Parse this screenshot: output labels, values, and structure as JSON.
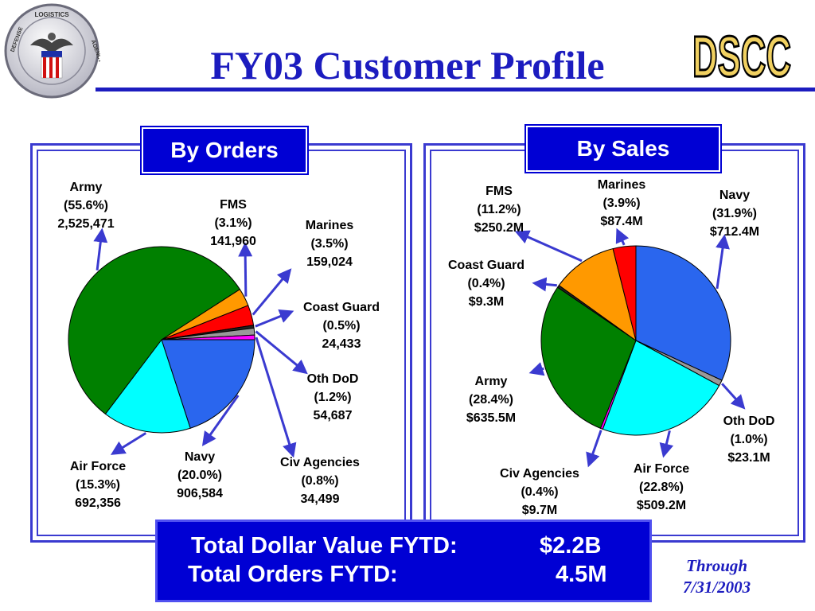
{
  "title": "FY03  Customer  Profile",
  "logo_text": {
    "top": "LOGISTICS",
    "left": "DEFENSE",
    "right": "AGENCY"
  },
  "brand": "DSCC",
  "colors": {
    "title": "#1c1cbf",
    "panel_border": "#3a3ad0",
    "box_fill": "#0000d4"
  },
  "chart_data": [
    {
      "type": "pie",
      "title": "By Orders",
      "slices": [
        {
          "name": "Navy",
          "percent": 20.0,
          "percent_label": "(20.0%)",
          "value_label": "906,584",
          "color": "#2a66ee"
        },
        {
          "name": "Air  Force",
          "percent": 15.3,
          "percent_label": "(15.3%)",
          "value_label": "692,356",
          "color": "#00ffff"
        },
        {
          "name": "Army",
          "percent": 55.6,
          "percent_label": "(55.6%)",
          "value_label": "2,525,471",
          "color": "#008000"
        },
        {
          "name": "FMS",
          "percent": 3.1,
          "percent_label": "(3.1%)",
          "value_label": "141,960",
          "color": "#ff9900"
        },
        {
          "name": "Marines",
          "percent": 3.5,
          "percent_label": "(3.5%)",
          "value_label": "159,024",
          "color": "#ff0000"
        },
        {
          "name": "Coast Guard",
          "percent": 0.5,
          "percent_label": "(0.5%)",
          "value_label": "24,433",
          "color": "#222222"
        },
        {
          "name": "Oth DoD",
          "percent": 1.2,
          "percent_label": "(1.2%)",
          "value_label": "54,687",
          "color": "#999999"
        },
        {
          "name": "Civ  Agencies",
          "percent": 0.8,
          "percent_label": "(0.8%)",
          "value_label": "34,499",
          "color": "#ff00ff"
        }
      ]
    },
    {
      "type": "pie",
      "title": "By Sales",
      "slices": [
        {
          "name": "Navy",
          "percent": 31.9,
          "percent_label": "(31.9%)",
          "value_label": "$712.4M",
          "color": "#2a66ee"
        },
        {
          "name": "Oth DoD",
          "percent": 1.0,
          "percent_label": "(1.0%)",
          "value_label": "$23.1M",
          "color": "#999999"
        },
        {
          "name": "Air  Force",
          "percent": 22.8,
          "percent_label": "(22.8%)",
          "value_label": "$509.2M",
          "color": "#00ffff"
        },
        {
          "name": "Civ  Agencies",
          "percent": 0.4,
          "percent_label": "(0.4%)",
          "value_label": "$9.7M",
          "color": "#ff00ff"
        },
        {
          "name": "Army",
          "percent": 28.4,
          "percent_label": "(28.4%)",
          "value_label": "$635.5M",
          "color": "#008000"
        },
        {
          "name": "Coast Guard",
          "percent": 0.4,
          "percent_label": "(0.4%)",
          "value_label": "$9.3M",
          "color": "#222222"
        },
        {
          "name": "FMS",
          "percent": 11.2,
          "percent_label": "(11.2%)",
          "value_label": "$250.2M",
          "color": "#ff9900"
        },
        {
          "name": "Marines",
          "percent": 3.9,
          "percent_label": "(3.9%)",
          "value_label": "$87.4M",
          "color": "#ff0000"
        }
      ]
    }
  ],
  "totals": {
    "dollar_label": "Total  Dollar Value FYTD:",
    "dollar_value": "$2.2B",
    "orders_label": "Total Orders FYTD:",
    "orders_value": "4.5M"
  },
  "through": {
    "line1": "Through",
    "line2": "7/31/2003"
  }
}
